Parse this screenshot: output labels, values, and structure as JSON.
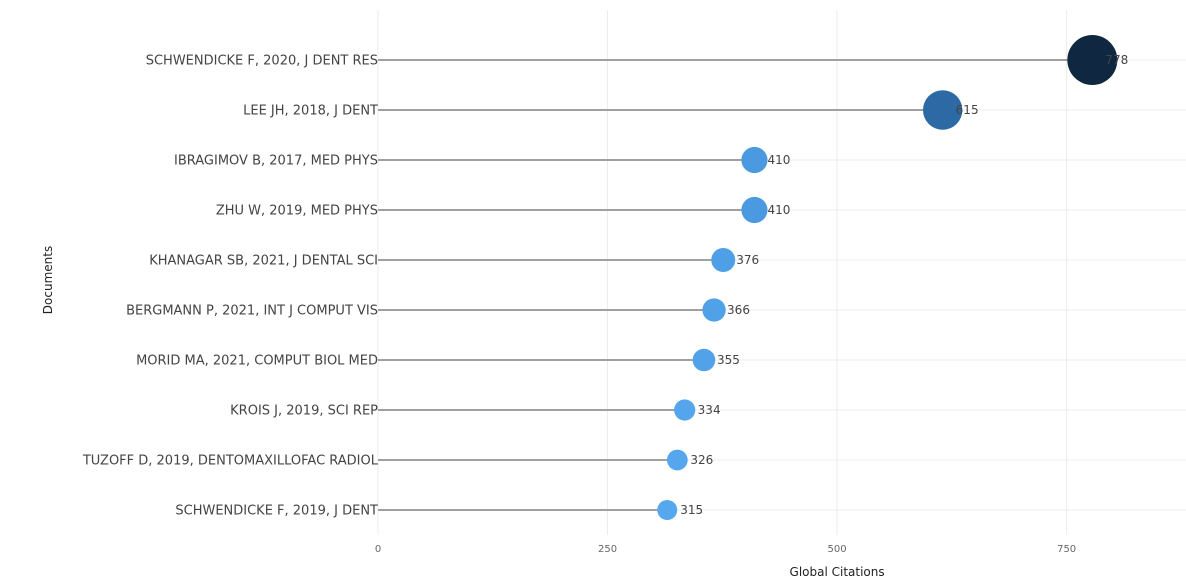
{
  "chart_data": {
    "type": "scatter",
    "subtype": "lollipop",
    "title": "",
    "xlabel": "Global Citations",
    "ylabel": "Documents",
    "xlim": [
      0,
      880
    ],
    "xticks": [
      0,
      250,
      500,
      750
    ],
    "grid": true,
    "legend": "none",
    "categories": [
      "SCHWENDICKE F, 2020, J DENT RES",
      "LEE JH, 2018, J DENT",
      "IBRAGIMOV B, 2017, MED PHYS",
      "ZHU W, 2019, MED PHYS",
      "KHANAGAR SB, 2021, J DENTAL SCI",
      "BERGMANN P, 2021, INT J COMPUT VIS",
      "MORID MA, 2021, COMPUT BIOL MED",
      "KROIS J, 2019, SCI REP",
      "TUZOFF D, 2019, DENTOMAXILLOFAC RADIOL",
      "SCHWENDICKE F, 2019, J DENT"
    ],
    "values": [
      778,
      615,
      410,
      410,
      376,
      366,
      355,
      334,
      326,
      315
    ],
    "value_labels": [
      "778",
      "615",
      "410",
      "410",
      "376",
      "366",
      "355",
      "334",
      "326",
      "315"
    ],
    "colors": {
      "low": "#56a8ee",
      "mid": "#3a86cf",
      "high": "#0f2740",
      "stem": "#a0a0a0",
      "grid": "#ececec"
    }
  }
}
